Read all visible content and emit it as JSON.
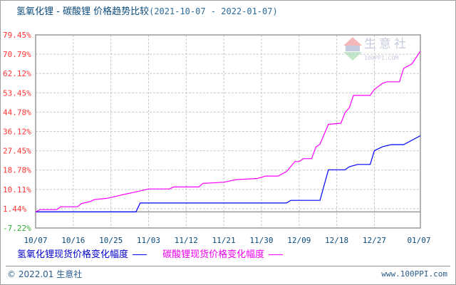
{
  "header": {
    "title": "氢氧化锂 - 碳酸锂 价格趋势比较",
    "range": "(2021-10-07 - 2022-01-07)"
  },
  "watermark": {
    "brand": "生意社",
    "site": "100PPI.COM"
  },
  "footer": {
    "copyright": "© 2022.01 生意社",
    "url": "www.100PPI.com"
  },
  "chart_data": {
    "type": "line",
    "title": "氢氧化锂 - 碳酸锂 价格趋势比较",
    "xlabel": "",
    "ylabel": "",
    "x_range": [
      "2021-10-07",
      "2022-01-07"
    ],
    "ylim": [
      -7.22,
      79.45
    ],
    "y_ticks": [
      "79.45%",
      "70.79%",
      "62.12%",
      "53.45%",
      "44.78%",
      "36.12%",
      "27.45%",
      "18.78%",
      "10.11%",
      "1.44%",
      "-7.22%"
    ],
    "y_tick_values": [
      79.45,
      70.79,
      62.12,
      53.45,
      44.78,
      36.12,
      27.45,
      18.78,
      10.11,
      1.44,
      -7.22
    ],
    "x_ticks": [
      "10/07",
      "10/16",
      "10/25",
      "11/03",
      "11/12",
      "11/21",
      "11/30",
      "12/09",
      "12/18",
      "12/27",
      "01/07"
    ],
    "x_tick_dates": [
      "2021-10-07",
      "2021-10-16",
      "2021-10-25",
      "2021-11-03",
      "2021-11-12",
      "2021-11-21",
      "2021-11-30",
      "2021-12-09",
      "2021-12-18",
      "2021-12-27",
      "2022-01-07"
    ],
    "grid": true,
    "legend": "bottom",
    "colors": {
      "positive_tick": "#ff3333",
      "negative_tick": "#33aa33",
      "grid": "#c8c8c8",
      "axis": "#999999"
    },
    "series": [
      {
        "name": "氢氧化锂现货价格变化幅度",
        "color": "#0000ff",
        "points": [
          [
            "2021-10-07",
            0
          ],
          [
            "2021-10-31",
            0
          ],
          [
            "2021-11-01",
            4.0
          ],
          [
            "2021-12-06",
            4.0
          ],
          [
            "2021-12-07",
            5.2
          ],
          [
            "2021-12-14",
            5.2
          ],
          [
            "2021-12-16",
            18.9
          ],
          [
            "2021-12-20",
            18.9
          ],
          [
            "2021-12-21",
            20.3
          ],
          [
            "2021-12-23",
            21.3
          ],
          [
            "2021-12-26",
            21.3
          ],
          [
            "2021-12-27",
            27.5
          ],
          [
            "2021-12-29",
            29.3
          ],
          [
            "2021-12-31",
            30.2
          ],
          [
            "2022-01-03",
            30.2
          ],
          [
            "2022-01-07",
            34.2
          ]
        ]
      },
      {
        "name": "碳酸锂现货价格变化幅度",
        "color": "#ff00ff",
        "points": [
          [
            "2021-10-07",
            0
          ],
          [
            "2021-10-08",
            1.0
          ],
          [
            "2021-10-12",
            1.0
          ],
          [
            "2021-10-13",
            2.3
          ],
          [
            "2021-10-17",
            2.3
          ],
          [
            "2021-10-18",
            3.8
          ],
          [
            "2021-10-20",
            4.6
          ],
          [
            "2021-10-21",
            5.5
          ],
          [
            "2021-10-24",
            6.1
          ],
          [
            "2021-10-26",
            6.9
          ],
          [
            "2021-10-28",
            7.8
          ],
          [
            "2021-10-31",
            9.0
          ],
          [
            "2021-11-03",
            10.3
          ],
          [
            "2021-11-08",
            10.3
          ],
          [
            "2021-11-09",
            11.2
          ],
          [
            "2021-11-15",
            11.2
          ],
          [
            "2021-11-16",
            12.8
          ],
          [
            "2021-11-21",
            13.3
          ],
          [
            "2021-11-24",
            14.5
          ],
          [
            "2021-11-29",
            15.0
          ],
          [
            "2021-12-01",
            16.1
          ],
          [
            "2021-12-04",
            16.1
          ],
          [
            "2021-12-06",
            18.1
          ],
          [
            "2021-12-08",
            22.6
          ],
          [
            "2021-12-09",
            22.6
          ],
          [
            "2021-12-10",
            23.9
          ],
          [
            "2021-12-12",
            23.9
          ],
          [
            "2021-12-13",
            29.1
          ],
          [
            "2021-12-14",
            30.4
          ],
          [
            "2021-12-16",
            39.3
          ],
          [
            "2021-12-19",
            39.8
          ],
          [
            "2021-12-20",
            44.6
          ],
          [
            "2021-12-21",
            46.7
          ],
          [
            "2021-12-22",
            52.3
          ],
          [
            "2021-12-26",
            52.3
          ],
          [
            "2021-12-27",
            55.0
          ],
          [
            "2021-12-29",
            57.8
          ],
          [
            "2021-12-30",
            58.4
          ],
          [
            "2022-01-02",
            58.4
          ],
          [
            "2022-01-03",
            64.4
          ],
          [
            "2022-01-05",
            66.5
          ],
          [
            "2022-01-07",
            72.2
          ]
        ]
      }
    ]
  }
}
